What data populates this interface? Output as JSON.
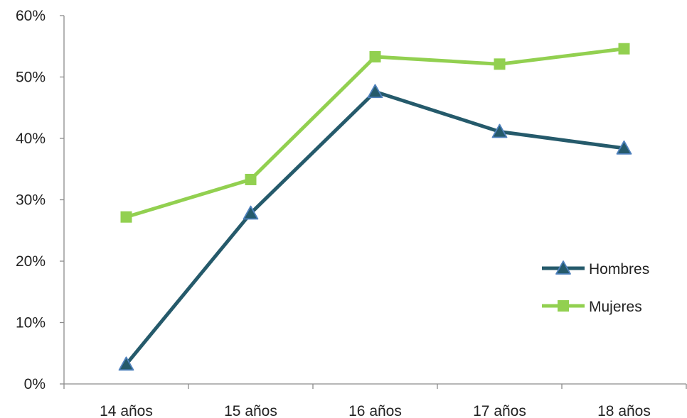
{
  "chart_data": {
    "type": "line",
    "title": "",
    "xlabel": "",
    "ylabel": "",
    "categories": [
      "14 años",
      "15 años",
      "16 años",
      "17 años",
      "18 años"
    ],
    "ylim": [
      0,
      60
    ],
    "yticks": [
      0,
      10,
      20,
      30,
      40,
      50,
      60
    ],
    "ytick_labels": [
      "0%",
      "10%",
      "20%",
      "30%",
      "40%",
      "50%",
      "60%"
    ],
    "grid": false,
    "legend_position": "right",
    "series": [
      {
        "name": "Hombres",
        "values": [
          3.2,
          27.8,
          47.6,
          41.1,
          38.4
        ],
        "color": "#255a6b",
        "marker": "triangle"
      },
      {
        "name": "Mujeres",
        "values": [
          27.2,
          33.3,
          53.3,
          52.1,
          54.6
        ],
        "color": "#92d050",
        "marker": "square"
      }
    ]
  }
}
